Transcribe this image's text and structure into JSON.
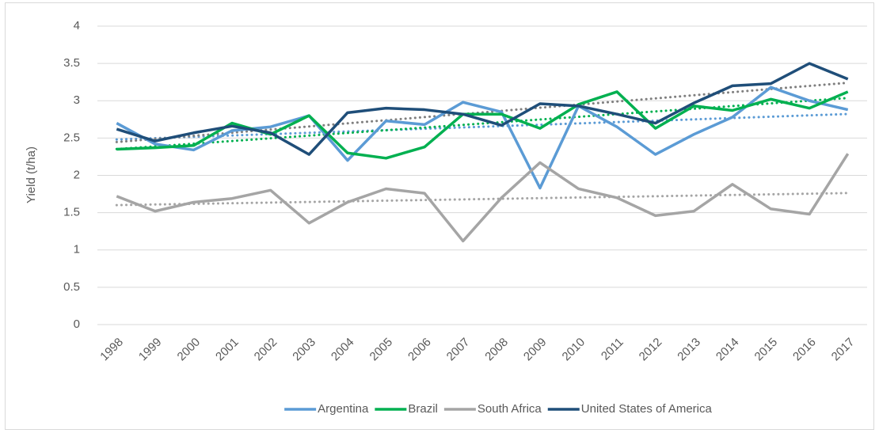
{
  "chart_data": {
    "type": "line",
    "y_label": "Yield (t/ha)",
    "categories": [
      "1998",
      "1999",
      "2000",
      "2001",
      "2002",
      "2003",
      "2004",
      "2005",
      "2006",
      "2007",
      "2008",
      "2009",
      "2010",
      "2011",
      "2012",
      "2013",
      "2014",
      "2015",
      "2016",
      "2017"
    ],
    "series": [
      {
        "name": "Argentina",
        "color": "#5b9bd5",
        "trendline_color": "#5b9bd5",
        "values": [
          2.7,
          2.42,
          2.34,
          2.6,
          2.65,
          2.8,
          2.2,
          2.73,
          2.68,
          2.98,
          2.85,
          1.83,
          2.93,
          2.65,
          2.28,
          2.55,
          2.78,
          3.18,
          3.0,
          2.88
        ]
      },
      {
        "name": "Brazil",
        "color": "#00b050",
        "trendline_color": "#00b050",
        "values": [
          2.35,
          2.37,
          2.4,
          2.7,
          2.55,
          2.8,
          2.3,
          2.23,
          2.38,
          2.82,
          2.82,
          2.63,
          2.95,
          3.12,
          2.63,
          2.93,
          2.87,
          3.02,
          2.9,
          3.12
        ]
      },
      {
        "name": "South Africa",
        "color": "#a5a5a5",
        "trendline_color": "#a5a5a5",
        "values": [
          1.72,
          1.52,
          1.64,
          1.69,
          1.8,
          1.36,
          1.64,
          1.82,
          1.76,
          1.12,
          1.7,
          2.17,
          1.82,
          1.7,
          1.46,
          1.52,
          1.88,
          1.55,
          1.48,
          2.29
        ]
      },
      {
        "name": "United States of America",
        "color": "#1f4e79",
        "trendline_color": "#7f7f7f",
        "values": [
          2.62,
          2.46,
          2.57,
          2.66,
          2.57,
          2.28,
          2.84,
          2.9,
          2.88,
          2.82,
          2.67,
          2.96,
          2.93,
          2.82,
          2.7,
          2.97,
          3.2,
          3.23,
          3.5,
          3.29
        ]
      }
    ],
    "ylim": [
      0,
      4
    ],
    "yticks": [
      0,
      0.5,
      1,
      1.5,
      2,
      2.5,
      3,
      3.5,
      4
    ],
    "grid": true,
    "trendlines": true,
    "legend": "bottom"
  }
}
